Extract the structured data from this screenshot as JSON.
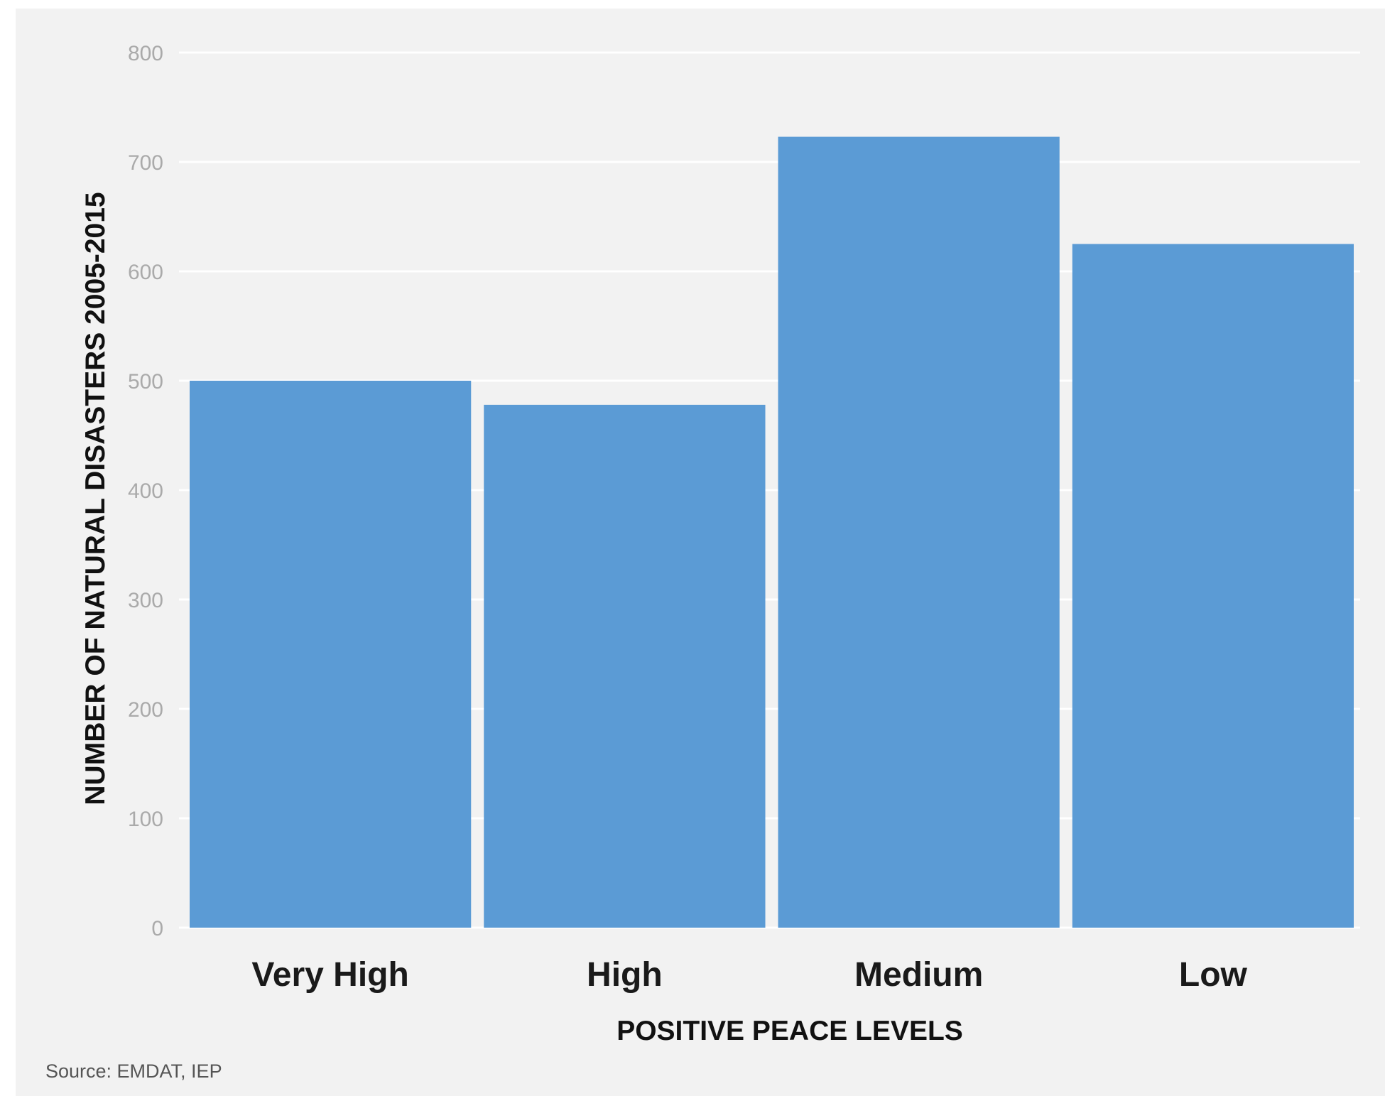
{
  "chart_data": {
    "type": "bar",
    "title": "",
    "xlabel": "POSITIVE PEACE LEVELS",
    "ylabel": "NUMBER OF NATURAL DISASTERS 2005-2015",
    "categories": [
      "Very High",
      "High",
      "Medium",
      "Low"
    ],
    "values": [
      500,
      478,
      723,
      625
    ],
    "ylim": [
      0,
      800
    ],
    "yticks": [
      "0",
      "100",
      "200",
      "300",
      "400",
      "500",
      "600",
      "700",
      "800"
    ],
    "grid": true,
    "legend": "none",
    "bar_color": "#5b9bd5",
    "gridline_color": "#ffffff",
    "background_color": "#f2f2f2"
  },
  "source": "Source: EMDAT, IEP"
}
